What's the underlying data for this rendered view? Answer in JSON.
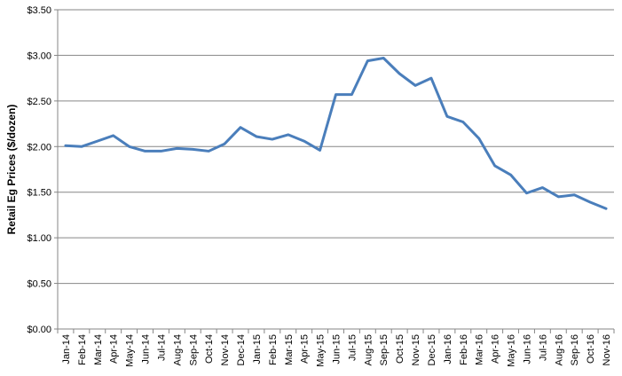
{
  "chart_data": {
    "type": "line",
    "title": "",
    "xlabel": "",
    "ylabel": "Retail Eg Prices ($/dozen)",
    "ylim": [
      0,
      3.5
    ],
    "y_ticks": [
      "$0.00",
      "$0.50",
      "$1.00",
      "$1.50",
      "$2.00",
      "$2.50",
      "$3.00",
      "$3.50"
    ],
    "y_tick_values": [
      0,
      0.5,
      1.0,
      1.5,
      2.0,
      2.5,
      3.0,
      3.5
    ],
    "grid": "horizontal",
    "legend": "none",
    "line_color": "#4a7ebb",
    "categories": [
      "Jan-14",
      "Feb-14",
      "Mar-14",
      "Apr-14",
      "May-14",
      "Jun-14",
      "Jul-14",
      "Aug-14",
      "Sep-14",
      "Oct-14",
      "Nov-14",
      "Dec-14",
      "Jan-15",
      "Feb-15",
      "Mar-15",
      "Apr-15",
      "May-15",
      "Jun-15",
      "Jul-15",
      "Aug-15",
      "Sep-15",
      "Oct-15",
      "Nov-15",
      "Dec-15",
      "Jan-16",
      "Feb-16",
      "Mar-16",
      "Apr-16",
      "May-16",
      "Jun-16",
      "Jul-16",
      "Aug-16",
      "Sep-16",
      "Oct-16",
      "Nov-16"
    ],
    "series": [
      {
        "values": [
          2.01,
          2.0,
          2.06,
          2.12,
          2.0,
          1.95,
          1.95,
          1.98,
          1.97,
          1.95,
          2.03,
          2.21,
          2.11,
          2.08,
          2.13,
          2.06,
          1.96,
          2.57,
          2.57,
          2.94,
          2.97,
          2.8,
          2.67,
          2.75,
          2.33,
          2.27,
          2.09,
          1.79,
          1.69,
          1.49,
          1.55,
          1.45,
          1.47,
          1.39,
          1.32
        ]
      }
    ]
  }
}
